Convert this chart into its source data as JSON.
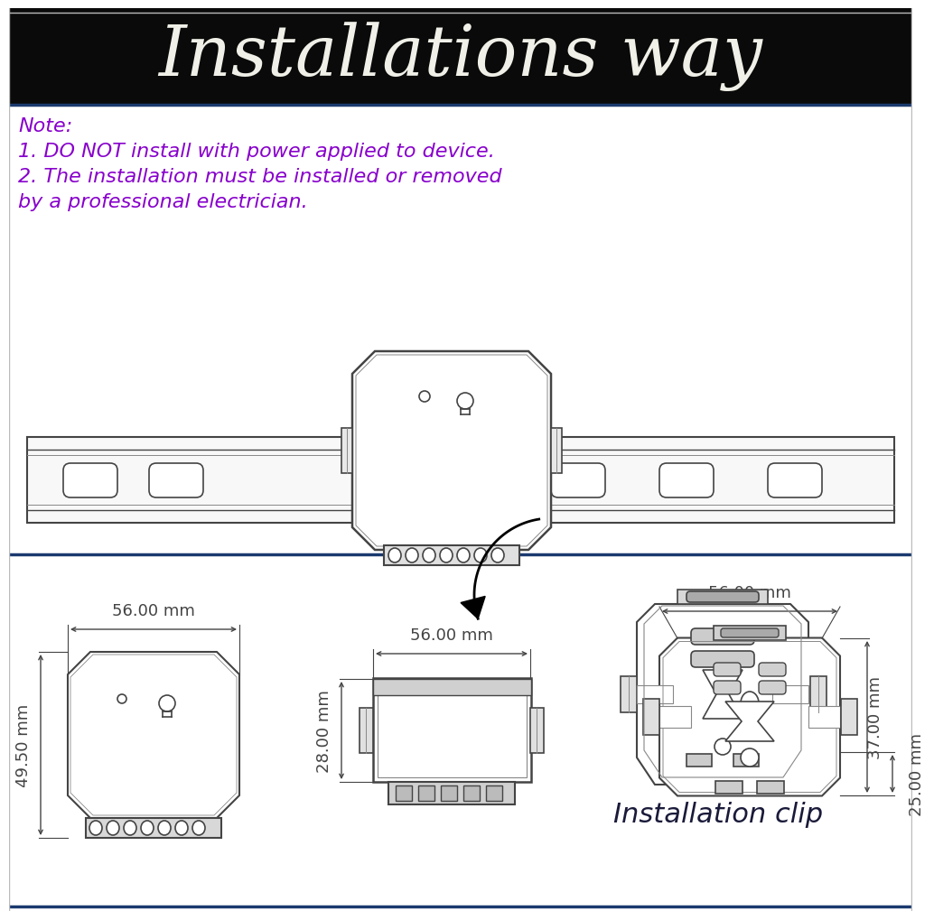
{
  "title": "Installations way",
  "title_color": "#f0f0e8",
  "title_bg": "#0a0a0a",
  "title_fontsize": 56,
  "bg_color": "#ffffff",
  "note_color": "#8800cc",
  "note_text": "Note:\n1. DO NOT install with power applied to device.\n2. The installation must be installed or removed\nby a professional electrician.",
  "note_fontsize": 16,
  "clip_label": "Installation clip",
  "clip_label_color": "#1a1a3a",
  "clip_label_fontsize": 22,
  "dim_color": "#444444",
  "dim_fontsize": 13,
  "dims": {
    "top_width": "56.00 mm",
    "left_height": "49.50 mm",
    "mid_width": "56.00 mm",
    "mid_height": "28.00 mm",
    "right_width": "56.00 mm",
    "right_height1": "37.00 mm",
    "right_height2": "25.00 mm"
  },
  "line_color": "#888888",
  "line_color_dark": "#444444",
  "border_color": "#1a3a6e"
}
